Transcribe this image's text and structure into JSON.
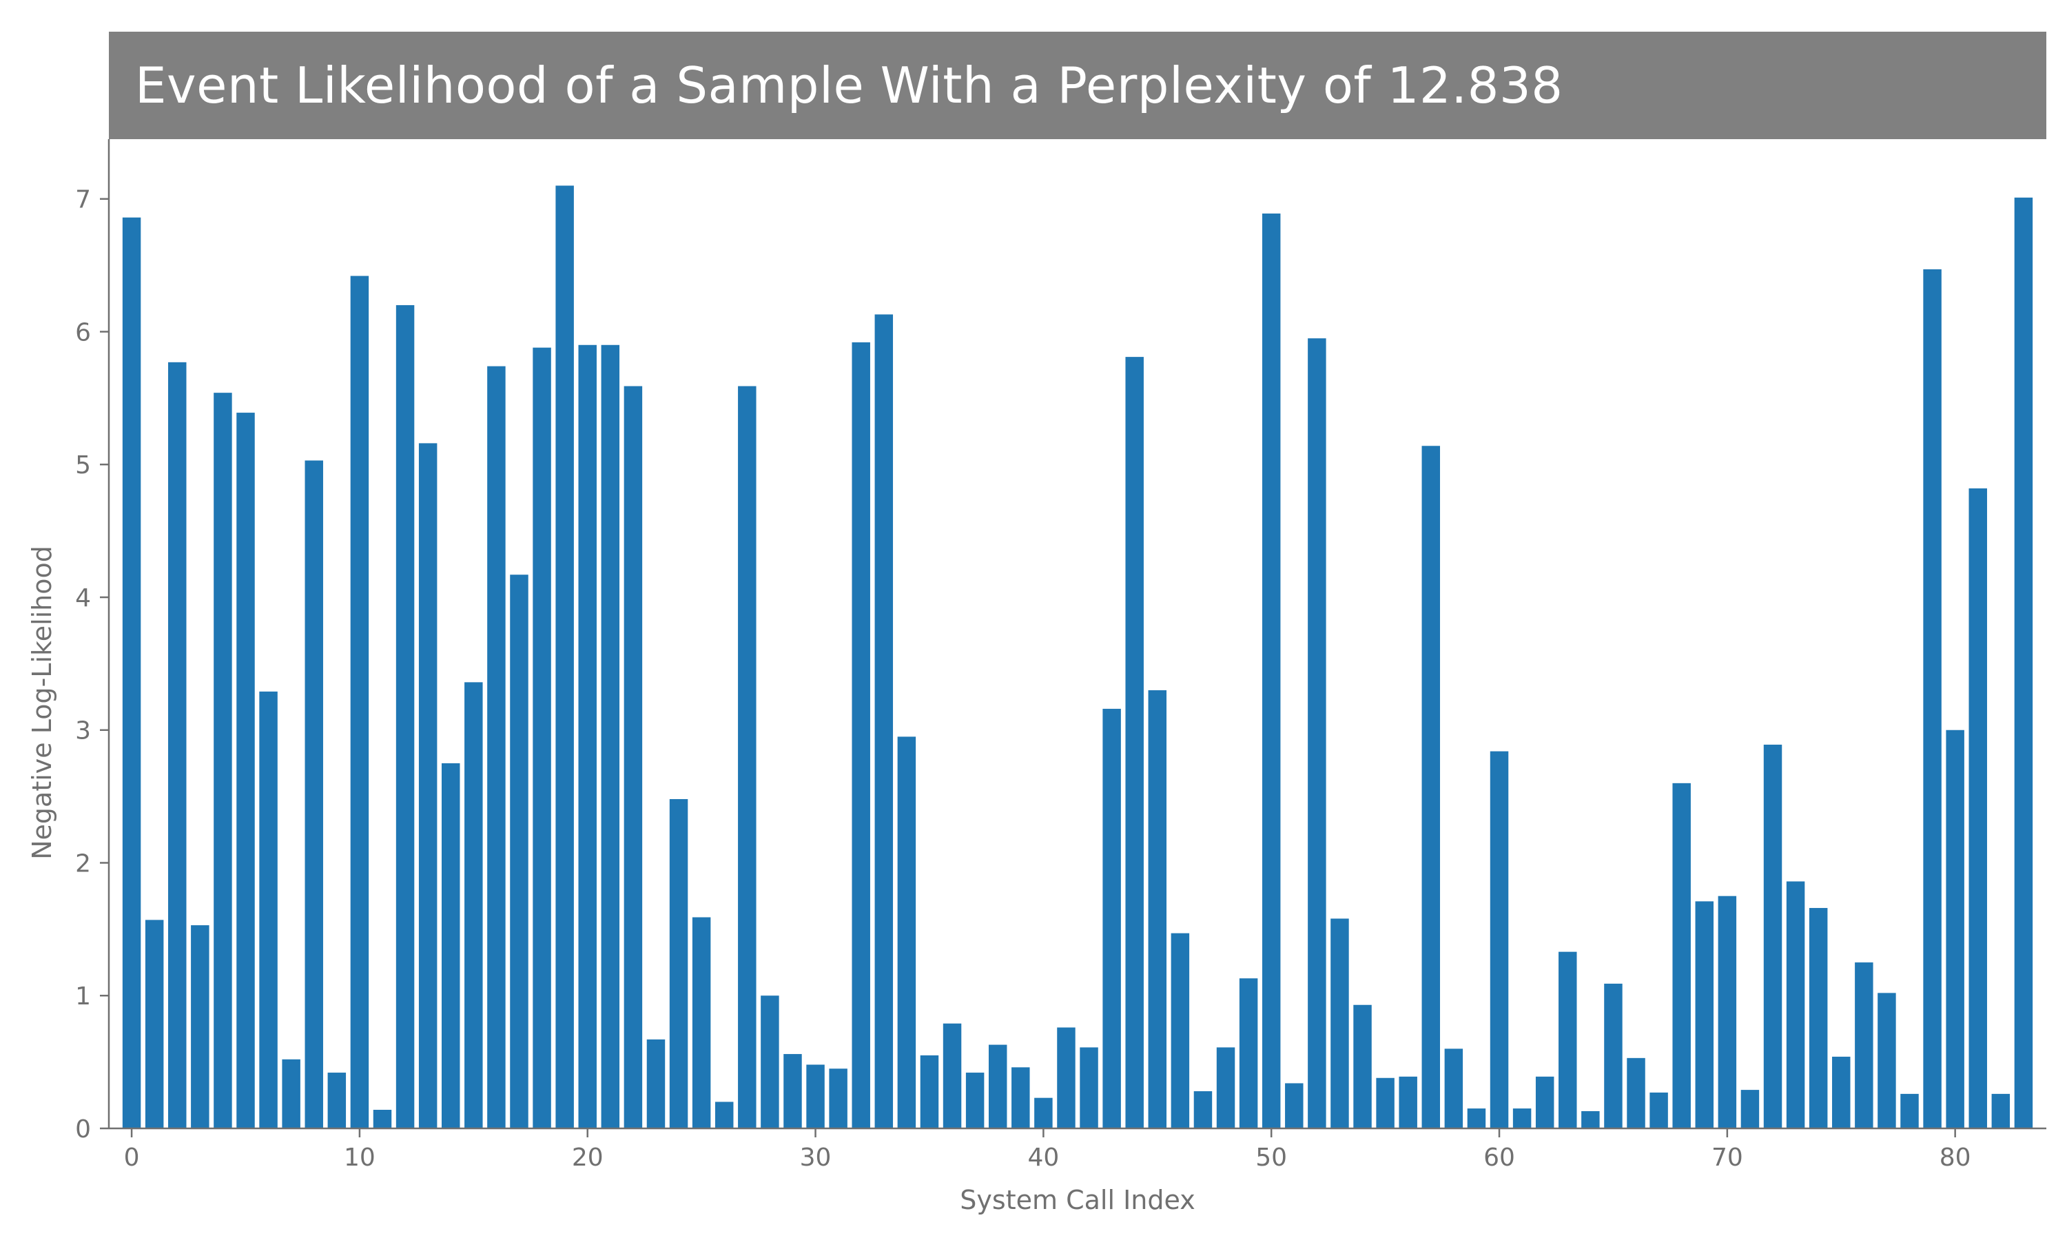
{
  "chart_data": {
    "type": "bar",
    "title": "Event Likelihood of a Sample With a Perplexity of 12.838",
    "xlabel": "System Call Index",
    "ylabel": "Negative Log-Likelihood",
    "xlim": [
      -1,
      84
    ],
    "ylim": [
      0,
      7.45
    ],
    "x_ticks": [
      0,
      10,
      20,
      30,
      40,
      50,
      60,
      70,
      80
    ],
    "y_ticks": [
      0,
      1,
      2,
      3,
      4,
      5,
      6,
      7
    ],
    "grid": false,
    "legend": "none",
    "bar_color": "#1f77b4",
    "title_background": "#808080",
    "title_color": "#ffffff",
    "axis_color": "#707070",
    "x": [
      0,
      1,
      2,
      3,
      4,
      5,
      6,
      7,
      8,
      9,
      10,
      11,
      12,
      13,
      14,
      15,
      16,
      17,
      18,
      19,
      20,
      21,
      22,
      23,
      24,
      25,
      26,
      27,
      28,
      29,
      30,
      31,
      32,
      33,
      34,
      35,
      36,
      37,
      38,
      39,
      40,
      41,
      42,
      43,
      44,
      45,
      46,
      47,
      48,
      49,
      50,
      51,
      52,
      53,
      54,
      55,
      56,
      57,
      58,
      59,
      60,
      61,
      62,
      63,
      64,
      65,
      66,
      67,
      68,
      69,
      70,
      71,
      72,
      73,
      74,
      75,
      76,
      77,
      78,
      79,
      80,
      81,
      82,
      83
    ],
    "values": [
      6.86,
      1.57,
      5.77,
      1.53,
      5.54,
      5.39,
      3.29,
      0.52,
      5.03,
      0.42,
      6.42,
      0.14,
      6.2,
      5.16,
      2.75,
      3.36,
      5.74,
      4.17,
      5.88,
      7.1,
      5.9,
      5.9,
      5.59,
      0.67,
      2.48,
      1.59,
      0.2,
      5.59,
      1.0,
      0.56,
      0.48,
      0.45,
      5.92,
      6.13,
      2.95,
      0.55,
      0.79,
      0.42,
      0.63,
      0.46,
      0.23,
      0.76,
      0.61,
      3.16,
      5.81,
      3.3,
      1.47,
      0.28,
      0.61,
      1.13,
      6.89,
      0.34,
      5.95,
      1.58,
      0.93,
      0.38,
      0.39,
      5.14,
      0.6,
      0.15,
      2.84,
      0.15,
      0.39,
      1.33,
      0.13,
      1.09,
      0.53,
      0.27,
      2.6,
      1.71,
      1.75,
      0.29,
      2.89,
      1.86,
      1.66,
      0.54,
      1.25,
      1.02,
      0.26,
      6.47,
      3.0,
      4.82,
      0.26,
      7.01
    ]
  }
}
